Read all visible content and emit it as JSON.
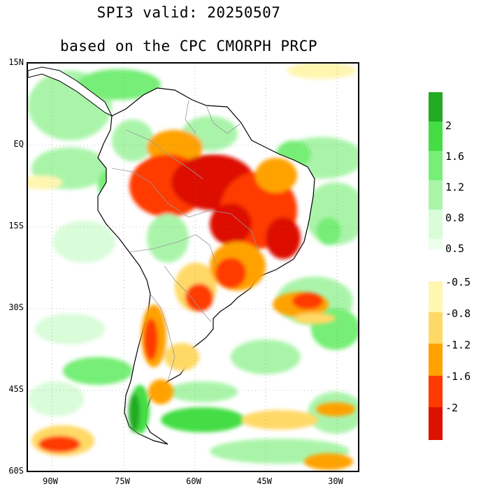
{
  "title": {
    "line1": "SPI3   valid: 20250507",
    "line2": "based on the CPC CMORPH PRCP"
  },
  "axes": {
    "lat_labels": [
      "15N",
      "EQ",
      "15S",
      "30S",
      "45S",
      "60S"
    ],
    "lon_labels": [
      "90W",
      "75W",
      "60W",
      "45W",
      "30W"
    ]
  },
  "colorbar": {
    "wet_colors": [
      "#22aa22",
      "#44dd44",
      "#77ee77",
      "#aaf4aa",
      "#d9fcd9",
      "#ecffec"
    ],
    "wet_labels": [
      "2",
      "1.6",
      "1.2",
      "0.8",
      "0.5"
    ],
    "dry_colors": [
      "#fff6b0",
      "#ffd966",
      "#ffa200",
      "#ff3a00",
      "#dd1100"
    ],
    "dry_labels": [
      "-0.5",
      "-0.8",
      "-1.2",
      "-1.6",
      "-2"
    ]
  },
  "colors": {
    "land_outline": "#000000",
    "border": "#999999",
    "grid": "#888888"
  }
}
